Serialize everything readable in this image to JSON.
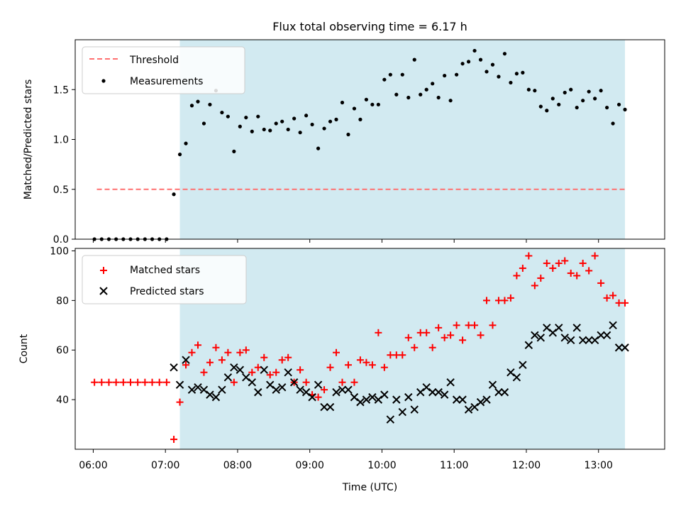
{
  "chart_data": [
    {
      "type": "scatter",
      "title": "Flux total observing time = 6.17 h",
      "xlabel": "",
      "ylabel": "Matched/Predicted stars",
      "xlim": [
        "05:45",
        "13:55"
      ],
      "ylim": [
        0,
        2.0
      ],
      "yticks": [
        0.0,
        0.5,
        1.0,
        1.5
      ],
      "ytick_labels": [
        "0.0",
        "0.5",
        "1.0",
        "1.5"
      ],
      "grid": false,
      "legend": "top-left",
      "shaded_span": {
        "from": "07:12",
        "to": "13:22",
        "color": "#add8e6"
      },
      "threshold": {
        "name": "Threshold",
        "value": 0.5,
        "from": "06:03",
        "to": "13:22",
        "color": "#ff7070"
      },
      "series": [
        {
          "name": "Measurements",
          "color": "#000000",
          "marker": "dot",
          "x": [
            "06:01",
            "06:07",
            "06:13",
            "06:19",
            "06:25",
            "06:31",
            "06:37",
            "06:43",
            "06:49",
            "06:55",
            "07:01",
            "07:07",
            "07:12",
            "07:17",
            "07:22",
            "07:27",
            "07:32",
            "07:37",
            "07:42",
            "07:47",
            "07:52",
            "07:57",
            "08:02",
            "08:07",
            "08:12",
            "08:17",
            "08:22",
            "08:27",
            "08:32",
            "08:37",
            "08:42",
            "08:47",
            "08:52",
            "08:57",
            "09:02",
            "09:07",
            "09:12",
            "09:17",
            "09:22",
            "09:27",
            "09:32",
            "09:37",
            "09:42",
            "09:47",
            "09:52",
            "09:57",
            "10:02",
            "10:07",
            "10:12",
            "10:17",
            "10:22",
            "10:27",
            "10:32",
            "10:37",
            "10:42",
            "10:47",
            "10:52",
            "10:57",
            "11:02",
            "11:07",
            "11:12",
            "11:17",
            "11:22",
            "11:27",
            "11:32",
            "11:37",
            "11:42",
            "11:47",
            "11:52",
            "11:57",
            "12:02",
            "12:07",
            "12:12",
            "12:17",
            "12:22",
            "12:27",
            "12:32",
            "12:37",
            "12:42",
            "12:47",
            "12:52",
            "12:57",
            "13:02",
            "13:07",
            "13:12",
            "13:17",
            "13:22"
          ],
          "y": [
            0,
            0,
            0,
            0,
            0,
            0,
            0,
            0,
            0,
            0,
            0,
            0.45,
            0.85,
            0.96,
            1.34,
            1.38,
            1.16,
            1.35,
            1.49,
            1.27,
            1.23,
            0.88,
            1.13,
            1.22,
            1.08,
            1.23,
            1.1,
            1.09,
            1.16,
            1.18,
            1.1,
            1.21,
            1.07,
            1.24,
            1.15,
            0.91,
            1.11,
            1.18,
            1.2,
            1.37,
            1.05,
            1.31,
            1.2,
            1.4,
            1.35,
            1.35,
            1.6,
            1.65,
            1.45,
            1.65,
            1.42,
            1.8,
            1.45,
            1.5,
            1.56,
            1.42,
            1.64,
            1.39,
            1.65,
            1.76,
            1.78,
            1.89,
            1.8,
            1.68,
            1.75,
            1.63,
            1.86,
            1.57,
            1.66,
            1.67,
            1.5,
            1.49,
            1.33,
            1.29,
            1.41,
            1.35,
            1.47,
            1.5,
            1.32,
            1.39,
            1.48,
            1.41,
            1.49,
            1.32,
            1.16,
            1.35,
            1.3
          ]
        }
      ]
    },
    {
      "type": "scatter",
      "title": "",
      "xlabel": "Time (UTC)",
      "ylabel": "Count",
      "xlim": [
        "05:45",
        "13:55"
      ],
      "xticks": [
        "06:00",
        "07:00",
        "08:00",
        "09:00",
        "10:00",
        "11:00",
        "12:00",
        "13:00"
      ],
      "ylim": [
        20,
        101
      ],
      "yticks": [
        40,
        60,
        80,
        100
      ],
      "ytick_labels": [
        "40",
        "60",
        "80",
        "100"
      ],
      "grid": false,
      "legend": "top-left",
      "shaded_span": {
        "from": "07:12",
        "to": "13:22",
        "color": "#add8e6"
      },
      "series": [
        {
          "name": "Matched stars",
          "color": "#ff0000",
          "marker": "plus",
          "x": [
            "06:01",
            "06:07",
            "06:13",
            "06:19",
            "06:25",
            "06:31",
            "06:37",
            "06:43",
            "06:49",
            "06:55",
            "07:01",
            "07:07",
            "07:12",
            "07:17",
            "07:22",
            "07:27",
            "07:32",
            "07:37",
            "07:42",
            "07:47",
            "07:52",
            "07:57",
            "08:02",
            "08:07",
            "08:12",
            "08:17",
            "08:22",
            "08:27",
            "08:32",
            "08:37",
            "08:42",
            "08:47",
            "08:52",
            "08:57",
            "09:02",
            "09:07",
            "09:12",
            "09:17",
            "09:22",
            "09:27",
            "09:32",
            "09:37",
            "09:42",
            "09:47",
            "09:52",
            "09:57",
            "10:02",
            "10:07",
            "10:12",
            "10:17",
            "10:22",
            "10:27",
            "10:32",
            "10:37",
            "10:42",
            "10:47",
            "10:52",
            "10:57",
            "11:02",
            "11:07",
            "11:12",
            "11:17",
            "11:22",
            "11:27",
            "11:32",
            "11:37",
            "11:42",
            "11:47",
            "11:52",
            "11:57",
            "12:02",
            "12:07",
            "12:12",
            "12:17",
            "12:22",
            "12:27",
            "12:32",
            "12:37",
            "12:42",
            "12:47",
            "12:52",
            "12:57",
            "13:02",
            "13:07",
            "13:12",
            "13:17",
            "13:22"
          ],
          "y": [
            47,
            47,
            47,
            47,
            47,
            47,
            47,
            47,
            47,
            47,
            47,
            24,
            39,
            54,
            59,
            62,
            51,
            55,
            61,
            56,
            59,
            47,
            59,
            60,
            51,
            53,
            57,
            50,
            51,
            56,
            57,
            47,
            52,
            47,
            42,
            41,
            44,
            53,
            59,
            47,
            54,
            47,
            56,
            55,
            54,
            67,
            53,
            58,
            58,
            58,
            65,
            61,
            67,
            67,
            61,
            69,
            65,
            66,
            70,
            64,
            70,
            70,
            66,
            80,
            70,
            80,
            80,
            81,
            90,
            93,
            98,
            86,
            89,
            95,
            93,
            95,
            96,
            91,
            90,
            95,
            92,
            98,
            87,
            81,
            82,
            79,
            79
          ]
        },
        {
          "name": "Predicted stars",
          "color": "#000000",
          "marker": "x",
          "x": [
            "07:07",
            "07:12",
            "07:17",
            "07:22",
            "07:27",
            "07:32",
            "07:37",
            "07:42",
            "07:47",
            "07:52",
            "07:57",
            "08:02",
            "08:07",
            "08:12",
            "08:17",
            "08:22",
            "08:27",
            "08:32",
            "08:37",
            "08:42",
            "08:47",
            "08:52",
            "08:57",
            "09:02",
            "09:07",
            "09:12",
            "09:17",
            "09:22",
            "09:27",
            "09:32",
            "09:37",
            "09:42",
            "09:47",
            "09:52",
            "09:57",
            "10:02",
            "10:07",
            "10:12",
            "10:17",
            "10:22",
            "10:27",
            "10:32",
            "10:37",
            "10:42",
            "10:47",
            "10:52",
            "10:57",
            "11:02",
            "11:07",
            "11:12",
            "11:17",
            "11:22",
            "11:27",
            "11:32",
            "11:37",
            "11:42",
            "11:47",
            "11:52",
            "11:57",
            "12:02",
            "12:07",
            "12:12",
            "12:17",
            "12:22",
            "12:27",
            "12:32",
            "12:37",
            "12:42",
            "12:47",
            "12:52",
            "12:57",
            "13:02",
            "13:07",
            "13:12",
            "13:17",
            "13:22"
          ],
          "y": [
            53,
            46,
            56,
            44,
            45,
            44,
            42,
            41,
            44,
            49,
            53,
            52,
            49,
            47,
            43,
            52,
            46,
            44,
            45,
            51,
            47,
            44,
            43,
            41,
            46,
            37,
            37,
            43,
            44,
            44,
            41,
            39,
            40,
            41,
            40,
            42,
            32,
            40,
            35,
            41,
            36,
            43,
            45,
            43,
            43,
            42,
            47,
            40,
            40,
            36,
            37,
            39,
            40,
            46,
            43,
            43,
            51,
            49,
            54,
            62,
            66,
            65,
            69,
            67,
            69,
            65,
            64,
            69,
            64,
            64,
            64,
            66,
            66,
            70,
            61,
            61
          ]
        }
      ]
    }
  ]
}
